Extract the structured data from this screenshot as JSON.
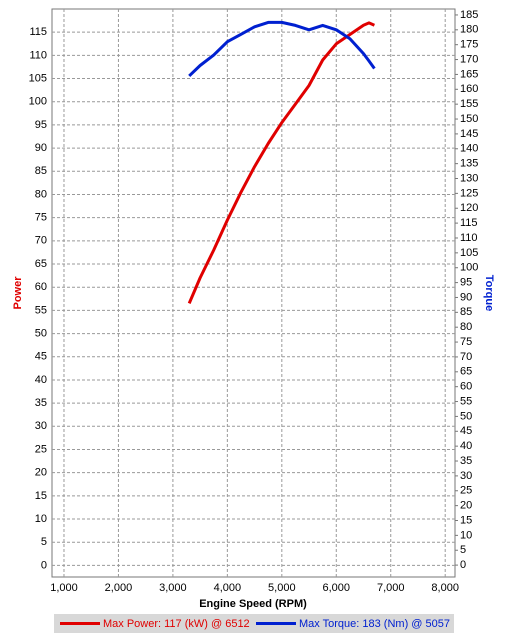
{
  "chart_data": {
    "type": "line",
    "x_label": "Engine Speed (RPM)",
    "y_label": "Power",
    "y2_label": "Torque",
    "x": [
      3300,
      3500,
      3750,
      4000,
      4250,
      4500,
      4750,
      5000,
      5250,
      5500,
      5750,
      6000,
      6250,
      6500,
      6600,
      6700
    ],
    "series": [
      {
        "name": "Max Power: 117 (kW) @ 6512",
        "color": "#e00000",
        "axis": "y",
        "values": [
          56.5,
          62,
          68,
          74.5,
          80.5,
          86,
          91,
          95.5,
          99.5,
          103.5,
          109,
          112.5,
          114.5,
          116.5,
          117,
          116.5
        ]
      },
      {
        "name": "Max Torque: 183 (Nm) @ 5057",
        "color": "#0020d0",
        "axis": "y2",
        "values": [
          164.5,
          168,
          171.5,
          176,
          178.5,
          181,
          182.5,
          182.5,
          181.5,
          180,
          181.5,
          180,
          177,
          172,
          169.5,
          167
        ]
      }
    ],
    "xlim": [
      780,
      8180
    ],
    "xticks": [
      {
        "value": 1000,
        "label": "1,000"
      },
      {
        "value": 2000,
        "label": "2,000"
      },
      {
        "value": 3000,
        "label": "3,000"
      },
      {
        "value": 4000,
        "label": "4,000"
      },
      {
        "value": 5000,
        "label": "5,000"
      },
      {
        "value": 6000,
        "label": "6,000"
      },
      {
        "value": 7000,
        "label": "7,000"
      },
      {
        "value": 8000,
        "label": "8,000"
      }
    ],
    "ylim": [
      -2.5,
      120
    ],
    "yticks": [
      0,
      5,
      10,
      15,
      20,
      25,
      30,
      35,
      40,
      45,
      50,
      55,
      60,
      65,
      70,
      75,
      80,
      85,
      90,
      95,
      100,
      105,
      110,
      115
    ],
    "y2lim": [
      -4,
      187
    ],
    "y2ticks": [
      0,
      5,
      10,
      15,
      20,
      25,
      30,
      35,
      40,
      45,
      50,
      55,
      60,
      65,
      70,
      75,
      80,
      85,
      90,
      95,
      100,
      105,
      110,
      115,
      120,
      125,
      130,
      135,
      140,
      145,
      150,
      155,
      160,
      165,
      170,
      175,
      180,
      185
    ],
    "grid": true
  }
}
